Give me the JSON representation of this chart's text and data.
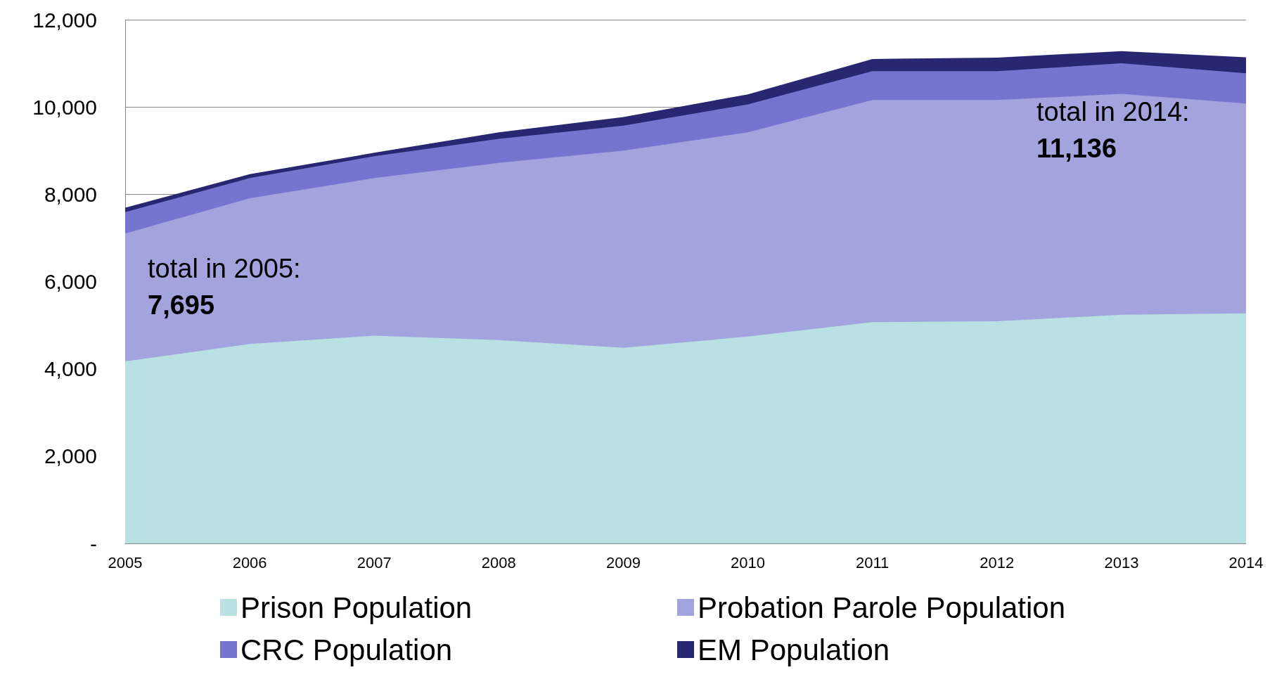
{
  "chart_data": {
    "type": "area",
    "stacked": true,
    "x": [
      2005,
      2006,
      2007,
      2008,
      2009,
      2010,
      2011,
      2012,
      2013,
      2014
    ],
    "series": [
      {
        "name": "Prison Population",
        "color": "#b9e0e2",
        "values": [
          4170,
          4570,
          4760,
          4660,
          4480,
          4740,
          5070,
          5090,
          5240,
          5270
        ]
      },
      {
        "name": "Probation Parole Population",
        "color": "#a3a3de",
        "values": [
          2930,
          3340,
          3610,
          4060,
          4520,
          4680,
          5090,
          5070,
          5060,
          4810
        ]
      },
      {
        "name": "CRC Population",
        "color": "#7575cf",
        "values": [
          490,
          460,
          500,
          550,
          570,
          640,
          660,
          660,
          700,
          690
        ]
      },
      {
        "name": "EM Population",
        "color": "#272772",
        "values": [
          100,
          90,
          80,
          150,
          200,
          230,
          280,
          310,
          280,
          370
        ]
      }
    ],
    "xlim": [
      2005,
      2014
    ],
    "xticks": [
      2005,
      2006,
      2007,
      2008,
      2009,
      2010,
      2011,
      2012,
      2013,
      2014
    ],
    "ylim": [
      0,
      12000
    ],
    "yticks": [
      {
        "value": 0,
        "label": "-"
      },
      {
        "value": 2000,
        "label": "2,000"
      },
      {
        "value": 4000,
        "label": "4,000"
      },
      {
        "value": 6000,
        "label": "6,000"
      },
      {
        "value": 8000,
        "label": "8,000"
      },
      {
        "value": 10000,
        "label": "10,000"
      },
      {
        "value": 12000,
        "label": "12,000"
      }
    ],
    "grid": "y",
    "legend": "bottom",
    "annotations": [
      "total in 2005: 7,695",
      "total in 2014: 11,136"
    ]
  }
}
